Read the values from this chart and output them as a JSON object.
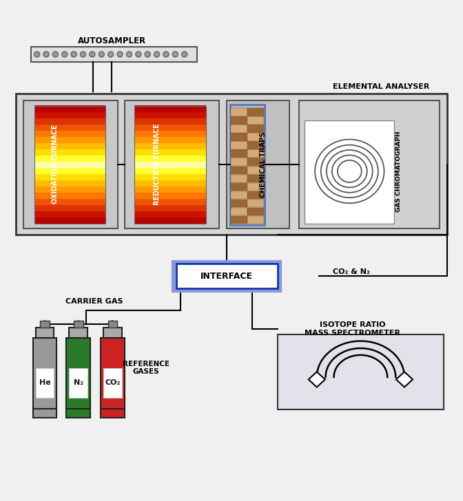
{
  "bg": "#f0f0f0",
  "autosampler_label": "AUTOSAMPLER",
  "elemental_analyser_label": "ELEMENTAL ANALYSER",
  "oxidation_furnace_label": "OXIDATION FURNACE",
  "reduction_furnace_label": "REDUCTION FURNACE",
  "chemical_traps_label": "CHEMICAL TRAPS",
  "gas_chromatograph_label": "GAS CHROMATOGRAPH",
  "carrier_gas_label": "CARRIER GAS",
  "interface_label": "INTERFACE",
  "co2_n2_label": "CO₂ & N₂",
  "reference_gases_label": "REFERENCE\nGASES",
  "isotope_ratio_label": "ISOTOPE RATIO\nMASS SPECTROMETER",
  "gas_labels": [
    "He",
    "N₂",
    "CO₂"
  ],
  "gas_colors": [
    "#999999",
    "#2a7a2a",
    "#cc2222"
  ],
  "furnace_colors": [
    "#bb0000",
    "#cc1100",
    "#dd3300",
    "#ee5500",
    "#ff7700",
    "#ff9900",
    "#ffbb00",
    "#ffdd00",
    "#ffff33",
    "#ffffaa",
    "#ffff33",
    "#ffdd00",
    "#ffbb00",
    "#ff9900",
    "#ff7700",
    "#ee5500",
    "#dd3300",
    "#cc1100",
    "#bb0000"
  ]
}
